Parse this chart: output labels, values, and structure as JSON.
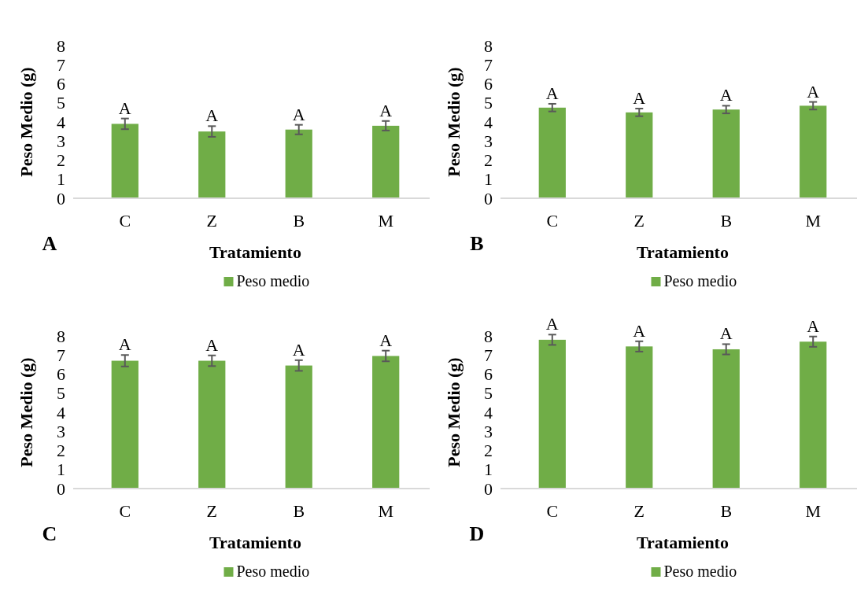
{
  "chart_data": [
    {
      "type": "bar",
      "xlabel": "Tratamiento",
      "ylabel": "Peso Medio (g)",
      "categories": [
        "C",
        "Z",
        "B",
        "M"
      ],
      "series": [
        {
          "name": "Peso medio",
          "color": "#70ad47",
          "values": [
            3.9,
            3.5,
            3.6,
            3.8
          ],
          "errors": [
            0.28,
            0.28,
            0.25,
            0.25
          ],
          "value_labels": [
            "A",
            "A",
            "A",
            "A"
          ]
        }
      ],
      "ylim": [
        0,
        8
      ],
      "yticks": [
        0,
        1,
        2,
        3,
        4,
        5,
        6,
        7,
        8
      ],
      "legend": "bottom",
      "annotations": [
        "A"
      ]
    },
    {
      "type": "bar",
      "xlabel": "Tratamiento",
      "ylabel": "Peso Medio (g)",
      "categories": [
        "C",
        "Z",
        "B",
        "M"
      ],
      "series": [
        {
          "name": "Peso medio",
          "color": "#70ad47",
          "values": [
            4.75,
            4.5,
            4.65,
            4.85
          ],
          "errors": [
            0.2,
            0.2,
            0.2,
            0.2
          ],
          "value_labels": [
            "A",
            "A",
            "A",
            "A"
          ]
        }
      ],
      "ylim": [
        0,
        8
      ],
      "yticks": [
        0,
        1,
        2,
        3,
        4,
        5,
        6,
        7,
        8
      ],
      "legend": "bottom",
      "annotations": [
        "B"
      ]
    },
    {
      "type": "bar",
      "xlabel": "Tratamiento",
      "ylabel": "Peso Medio (g)",
      "categories": [
        "C",
        "Z",
        "B",
        "M"
      ],
      "series": [
        {
          "name": "Peso medio",
          "color": "#70ad47",
          "values": [
            6.7,
            6.7,
            6.45,
            6.95
          ],
          "errors": [
            0.3,
            0.28,
            0.28,
            0.28
          ],
          "value_labels": [
            "A",
            "A",
            "A",
            "A"
          ]
        }
      ],
      "ylim": [
        0,
        8
      ],
      "yticks": [
        0,
        1,
        2,
        3,
        4,
        5,
        6,
        7,
        8
      ],
      "legend": "bottom",
      "annotations": [
        "C"
      ]
    },
    {
      "type": "bar",
      "xlabel": "Tratamiento",
      "ylabel": "Peso Medio (g)",
      "categories": [
        "C",
        "Z",
        "B",
        "M"
      ],
      "series": [
        {
          "name": "Peso medio",
          "color": "#70ad47",
          "values": [
            7.8,
            7.45,
            7.3,
            7.7
          ],
          "errors": [
            0.27,
            0.27,
            0.27,
            0.27
          ],
          "value_labels": [
            "A",
            "A",
            "A",
            "A"
          ]
        }
      ],
      "ylim": [
        0,
        8
      ],
      "yticks": [
        0,
        1,
        2,
        3,
        4,
        5,
        6,
        7,
        8
      ],
      "legend": "bottom",
      "annotations": [
        "D"
      ]
    }
  ]
}
